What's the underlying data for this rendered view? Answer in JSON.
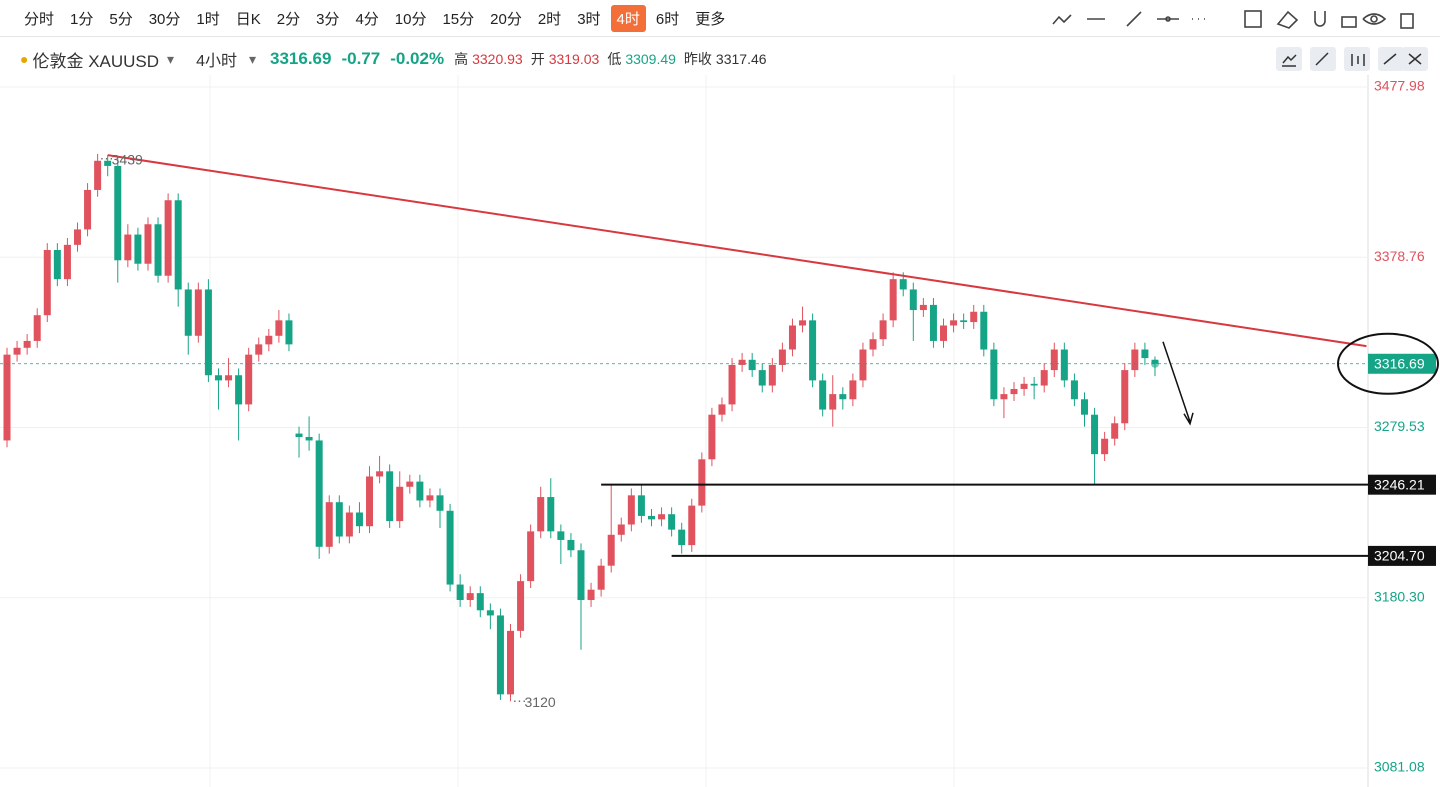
{
  "toolbar": {
    "periods": [
      "分时",
      "1分",
      "5分",
      "30分",
      "1时",
      "日K",
      "2分",
      "3分",
      "4分",
      "10分",
      "15分",
      "20分",
      "2时",
      "3时",
      "4时",
      "6时",
      "更多"
    ],
    "active": "4时"
  },
  "header": {
    "symbol": "伦敦金 XAUUSD",
    "period": "4小时",
    "change": -0.77,
    "change_pct": {
      "value": -0.02,
      "label": "-0.02%"
    },
    "high_label": "高",
    "open_label": "开",
    "low_label": "低",
    "prev_label": "昨收",
    "prev_close": 3317.46
  },
  "chart_data": {
    "type": "candlestick",
    "up_color": "#e0525e",
    "down_color": "#16a487",
    "open": [
      3272,
      3322,
      3326,
      3330,
      3345,
      3383,
      3366,
      3386,
      3395,
      3418,
      3435,
      3432,
      3377,
      3392,
      3375,
      3398,
      3368,
      3412,
      3360,
      3333,
      3360,
      3310,
      3307,
      3310,
      3293,
      3322,
      3328,
      3333,
      3342,
      3276,
      3274,
      3272,
      3210,
      3236,
      3216,
      3230,
      3222,
      3251,
      3254,
      3225,
      3245,
      3248,
      3237,
      3240,
      3231,
      3188,
      3179,
      3183,
      3173,
      3170,
      3124,
      3161,
      3190,
      3219,
      3239,
      3219,
      3214,
      3208,
      3179,
      3185,
      3199,
      3217,
      3223,
      3240,
      3228,
      3226,
      3229,
      3220,
      3211,
      3234,
      3261,
      3287,
      3293,
      3316,
      3319,
      3313,
      3304,
      3316,
      3325,
      3339,
      3342,
      3307,
      3290,
      3299,
      3296,
      3307,
      3325,
      3331,
      3342,
      3366,
      3360,
      3348,
      3351,
      3330,
      3339,
      3342,
      3341,
      3347,
      3325,
      3296,
      3299,
      3302,
      3305,
      3304,
      3313,
      3325,
      3307,
      3296,
      3287,
      3264,
      3273,
      3282,
      3313,
      3325,
      3319.03
    ],
    "high": [
      3326,
      3330,
      3334,
      3349,
      3387,
      3387,
      3390,
      3399,
      3422,
      3439,
      3438.29,
      3436,
      3398,
      3396,
      3402,
      3402,
      3416,
      3416,
      3364,
      3364,
      3366,
      3314,
      3320,
      3314,
      3326,
      3332,
      3337,
      3348,
      3346,
      3280,
      3286,
      3276,
      3240,
      3240,
      3234,
      3236,
      3257,
      3263,
      3258,
      3254,
      3252,
      3252,
      3244,
      3244,
      3235,
      3194,
      3187,
      3187,
      3177,
      3174,
      3165,
      3194,
      3223,
      3245,
      3250,
      3223,
      3218,
      3212,
      3189,
      3203,
      3246,
      3227,
      3244,
      3246,
      3232,
      3233,
      3233,
      3224,
      3238,
      3265,
      3291,
      3297,
      3320,
      3323,
      3323,
      3317,
      3320,
      3329,
      3343,
      3350,
      3346,
      3311,
      3310,
      3303,
      3311,
      3329,
      3335,
      3346,
      3370,
      3370,
      3364,
      3355,
      3355,
      3343,
      3346,
      3346,
      3351,
      3351,
      3329,
      3303,
      3306,
      3309,
      3309,
      3317,
      3329,
      3329,
      3311,
      3300,
      3291,
      3277,
      3286,
      3317,
      3329,
      3329,
      3320.93
    ],
    "low": [
      3268,
      3318,
      3322,
      3326,
      3341,
      3362,
      3362,
      3382,
      3391,
      3414,
      3426,
      3364,
      3373,
      3371,
      3371,
      3364,
      3364,
      3350,
      3322,
      3329,
      3306,
      3290,
      3303,
      3272,
      3289,
      3318,
      3324,
      3329,
      3324,
      3262,
      3266,
      3203,
      3206,
      3212,
      3212,
      3218,
      3218,
      3247,
      3221,
      3221,
      3241,
      3233,
      3233,
      3221,
      3184,
      3175,
      3175,
      3169,
      3162,
      3120.77,
      3120,
      3157,
      3186,
      3215,
      3215,
      3200,
      3204,
      3150,
      3175,
      3181,
      3195,
      3213,
      3219,
      3224,
      3222,
      3222,
      3216,
      3206,
      3207,
      3230,
      3257,
      3283,
      3289,
      3312,
      3309,
      3300,
      3300,
      3312,
      3321,
      3335,
      3303,
      3286,
      3280,
      3290,
      3292,
      3303,
      3321,
      3327,
      3338,
      3356,
      3330,
      3344,
      3326,
      3326,
      3335,
      3337,
      3337,
      3321,
      3292,
      3285,
      3295,
      3298,
      3296,
      3300,
      3309,
      3303,
      3292,
      3280,
      3246.21,
      3260,
      3269,
      3278,
      3309,
      3316,
      3309.49
    ],
    "close": [
      3322,
      3326,
      3330,
      3345,
      3383,
      3366,
      3386,
      3395,
      3418,
      3435,
      3432,
      3377,
      3392,
      3375,
      3398,
      3368,
      3412,
      3360,
      3333,
      3360,
      3310,
      3307,
      3310,
      3293,
      3322,
      3328,
      3333,
      3342,
      3328,
      3274,
      3272,
      3210,
      3236,
      3216,
      3230,
      3222,
      3251,
      3254,
      3225,
      3245,
      3248,
      3237,
      3240,
      3231,
      3188,
      3179,
      3183,
      3173,
      3170,
      3124,
      3161,
      3190,
      3219,
      3239,
      3219,
      3214,
      3208,
      3179,
      3185,
      3199,
      3217,
      3223,
      3240,
      3228,
      3226,
      3229,
      3220,
      3211,
      3234,
      3261,
      3287,
      3293,
      3316,
      3319,
      3313,
      3304,
      3316,
      3325,
      3339,
      3342,
      3307,
      3290,
      3299,
      3296,
      3307,
      3325,
      3331,
      3342,
      3366,
      3360,
      3348,
      3351,
      3330,
      3339,
      3342,
      3341,
      3347,
      3325,
      3296,
      3299,
      3302,
      3305,
      3304,
      3313,
      3325,
      3307,
      3296,
      3287,
      3264,
      3273,
      3282,
      3313,
      3325,
      3320,
      3316.69
    ],
    "ylim": [
      3070,
      3485
    ],
    "yticks": [
      3477.98,
      3378.76,
      3279.53,
      {
        "value": 3180.3,
        "label": "3180.30"
      },
      3081.08
    ],
    "hlines": [
      {
        "value": 3246.21,
        "from": 59
      },
      {
        "value": 3204.7,
        "label": "3204.70",
        "from": 66
      }
    ],
    "trendline": {
      "x": [
        10,
        135
      ],
      "y": [
        3438.29,
        3327
      ],
      "color": "#d8383f"
    },
    "grid": true
  }
}
